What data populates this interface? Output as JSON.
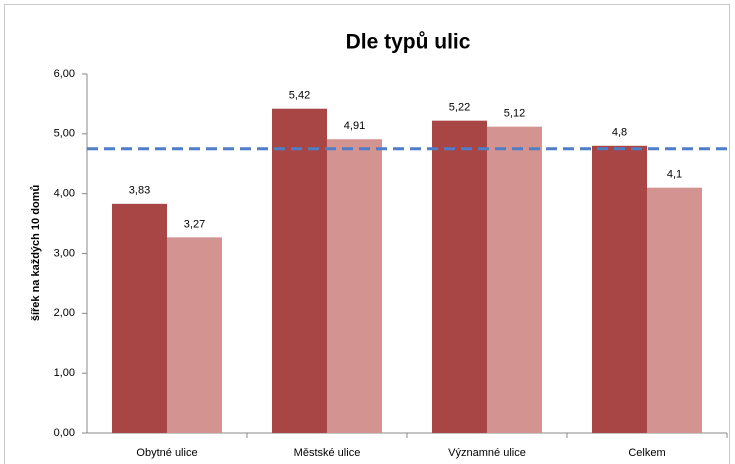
{
  "chart_data": {
    "type": "bar",
    "title": "Dle typů ulic",
    "y_label": "šířek na každých 10 domů",
    "categories": [
      "Obytné ulice",
      "Městské ulice",
      "Významné ulice",
      "Celkem"
    ],
    "series": [
      {
        "color": "#a84645",
        "values": [
          3.83,
          5.42,
          5.22,
          4.8
        ],
        "value_labels": [
          "3,83",
          "5,42",
          "5,22",
          "4,8"
        ]
      },
      {
        "color": "#d39391",
        "values": [
          3.27,
          4.91,
          5.12,
          4.1
        ],
        "value_labels": [
          "3,27",
          "4,91",
          "5,12",
          "4,1"
        ]
      }
    ],
    "reference_line": {
      "value": 4.75,
      "color": "#4f7dc6",
      "dashed": true
    },
    "ylim": [
      0,
      6
    ],
    "yticks": [
      {
        "value": 0,
        "label": "0,00"
      },
      {
        "value": 1,
        "label": "1,00"
      },
      {
        "value": 2,
        "label": "2,00"
      },
      {
        "value": 3,
        "label": "3,00"
      },
      {
        "value": 4,
        "label": "4,00"
      },
      {
        "value": 5,
        "label": "5,00"
      },
      {
        "value": 6,
        "label": "6,00"
      }
    ],
    "grid": false
  }
}
